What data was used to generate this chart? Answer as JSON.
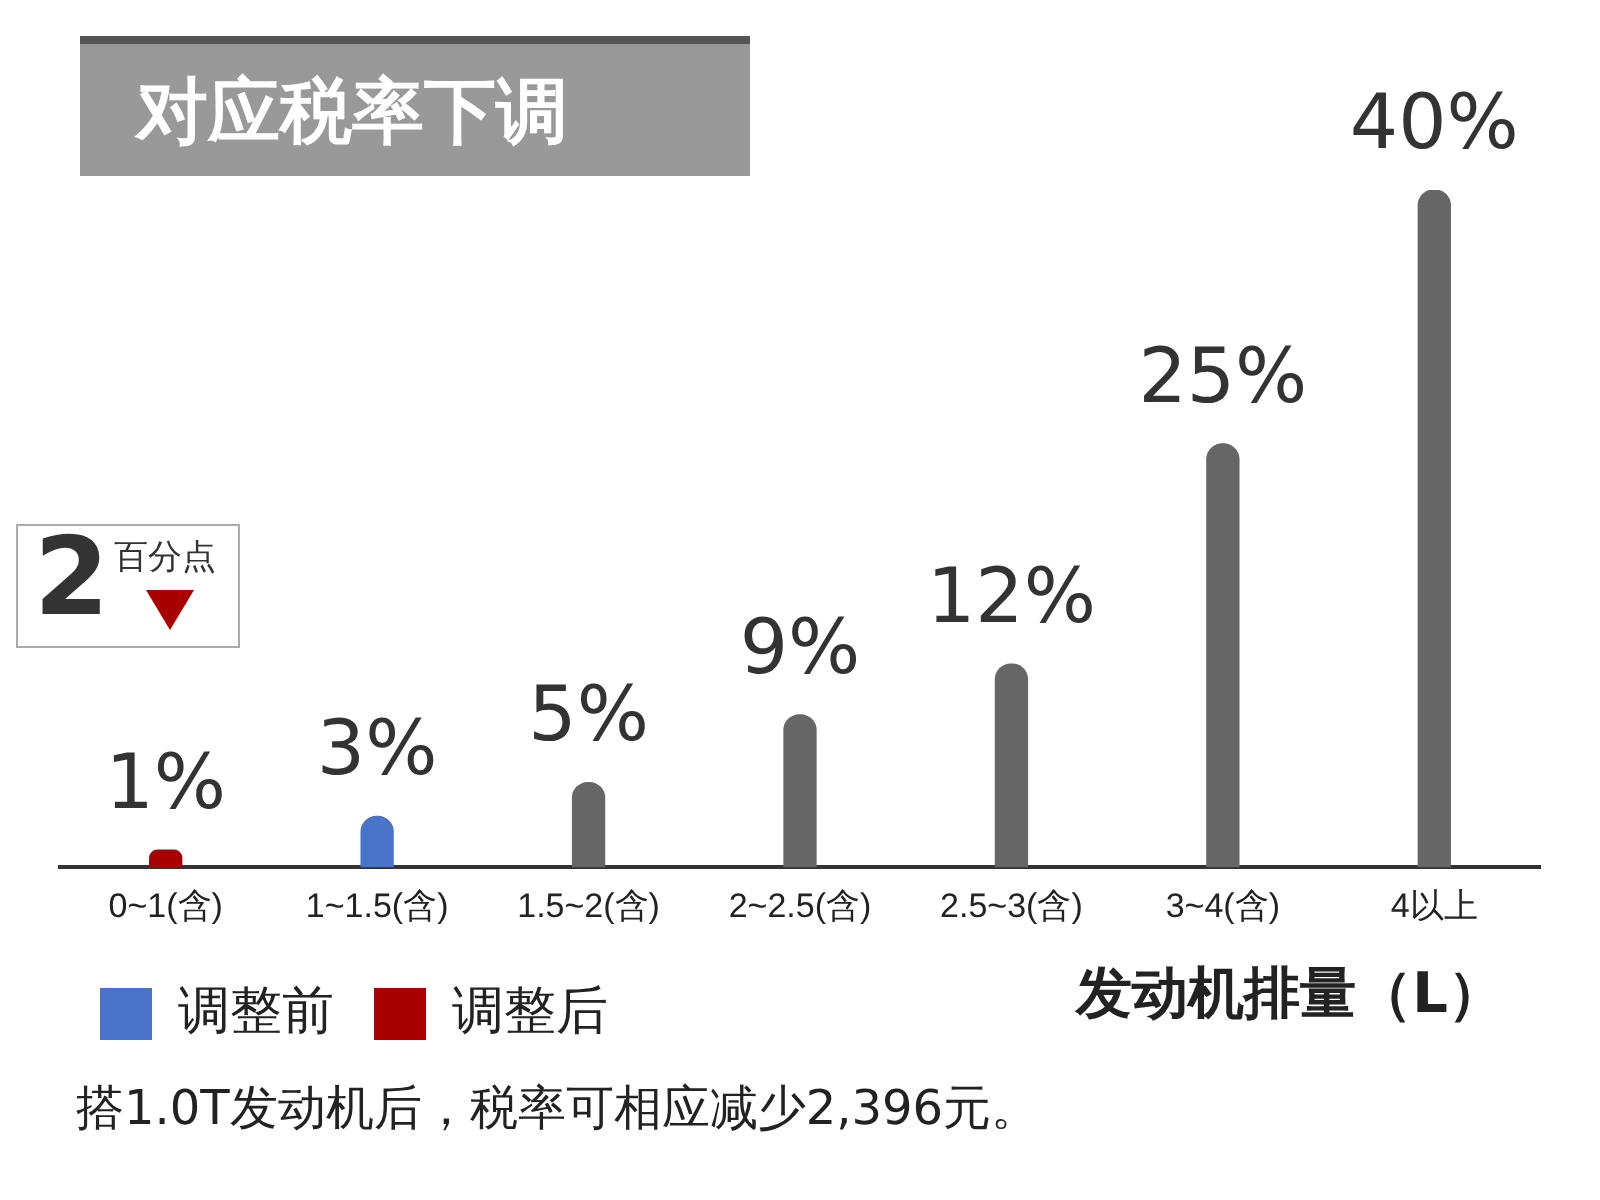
{
  "chart_data": {
    "type": "bar",
    "title": "对应税率下调",
    "xlabel": "发动机排量（L）",
    "categories": [
      "0~1(含)",
      "1~1.5(含)",
      "1.5~2(含)",
      "2~2.5(含)",
      "2.5~3(含)",
      "3~4(含)",
      "4以上"
    ],
    "stacked": true,
    "legend": "bottom left",
    "series": [
      {
        "name": "调整前",
        "color": "#4a74c9",
        "values": [
          null,
          3,
          null,
          null,
          null,
          null,
          null
        ],
        "value_labels": [
          null,
          "3%",
          null,
          null,
          null,
          null,
          null
        ]
      },
      {
        "name": "调整后",
        "color": "#a80000",
        "values": [
          1,
          null,
          null,
          null,
          null,
          null,
          null
        ],
        "value_labels": [
          "1%",
          null,
          null,
          null,
          null,
          null,
          null
        ]
      },
      {
        "color": "#666666",
        "values": [
          null,
          null,
          5,
          9,
          12,
          25,
          40
        ],
        "value_labels": [
          null,
          null,
          "5%",
          "9%",
          "12%",
          "25%",
          "40%"
        ]
      }
    ],
    "annotations": [
      "2",
      "百分点",
      "搭1.0T发动机后，税率可相应减少2,396元。"
    ]
  }
}
